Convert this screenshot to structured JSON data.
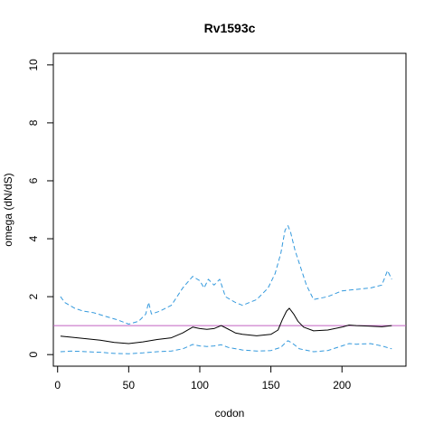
{
  "chart_data": {
    "type": "line",
    "title": "Rv1593c",
    "xlabel": "codon",
    "ylabel": "omega (dN/dS)",
    "xlim": [
      -3,
      245
    ],
    "ylim": [
      -0.4,
      10.4
    ],
    "xticks": [
      0,
      50,
      100,
      150,
      200
    ],
    "yticks": [
      0,
      2,
      4,
      6,
      8,
      10
    ],
    "grid": false,
    "legend": "none",
    "reference_line": {
      "y": 1,
      "color": "#c060c0"
    },
    "series": [
      {
        "style": "solid",
        "color": "#000000",
        "points": [
          [
            2,
            0.64
          ],
          [
            10,
            0.6
          ],
          [
            20,
            0.55
          ],
          [
            30,
            0.5
          ],
          [
            40,
            0.42
          ],
          [
            50,
            0.38
          ],
          [
            60,
            0.44
          ],
          [
            70,
            0.52
          ],
          [
            80,
            0.58
          ],
          [
            88,
            0.75
          ],
          [
            95,
            0.95
          ],
          [
            100,
            0.9
          ],
          [
            105,
            0.87
          ],
          [
            110,
            0.9
          ],
          [
            115,
            1.0
          ],
          [
            120,
            0.88
          ],
          [
            125,
            0.75
          ],
          [
            130,
            0.7
          ],
          [
            140,
            0.65
          ],
          [
            150,
            0.7
          ],
          [
            155,
            0.85
          ],
          [
            158,
            1.2
          ],
          [
            161,
            1.5
          ],
          [
            163,
            1.6
          ],
          [
            166,
            1.4
          ],
          [
            169,
            1.15
          ],
          [
            173,
            0.95
          ],
          [
            180,
            0.82
          ],
          [
            190,
            0.85
          ],
          [
            200,
            0.95
          ],
          [
            205,
            1.02
          ],
          [
            210,
            1.0
          ],
          [
            220,
            0.98
          ],
          [
            228,
            0.96
          ],
          [
            235,
            1.0
          ]
        ]
      },
      {
        "style": "dashed",
        "color": "#3399dd",
        "points": [
          [
            2,
            2.0
          ],
          [
            5,
            1.8
          ],
          [
            12,
            1.6
          ],
          [
            18,
            1.5
          ],
          [
            25,
            1.45
          ],
          [
            35,
            1.3
          ],
          [
            42,
            1.2
          ],
          [
            50,
            1.05
          ],
          [
            57,
            1.15
          ],
          [
            62,
            1.4
          ],
          [
            64,
            1.8
          ],
          [
            66,
            1.4
          ],
          [
            72,
            1.5
          ],
          [
            80,
            1.7
          ],
          [
            88,
            2.3
          ],
          [
            95,
            2.7
          ],
          [
            100,
            2.55
          ],
          [
            103,
            2.3
          ],
          [
            106,
            2.6
          ],
          [
            110,
            2.4
          ],
          [
            114,
            2.6
          ],
          [
            118,
            2.0
          ],
          [
            125,
            1.8
          ],
          [
            130,
            1.7
          ],
          [
            140,
            1.9
          ],
          [
            148,
            2.3
          ],
          [
            153,
            2.8
          ],
          [
            157,
            3.5
          ],
          [
            160,
            4.3
          ],
          [
            162,
            4.45
          ],
          [
            164,
            4.2
          ],
          [
            167,
            3.6
          ],
          [
            171,
            3.0
          ],
          [
            175,
            2.4
          ],
          [
            180,
            1.9
          ],
          [
            190,
            2.0
          ],
          [
            200,
            2.2
          ],
          [
            210,
            2.25
          ],
          [
            220,
            2.3
          ],
          [
            228,
            2.4
          ],
          [
            232,
            2.9
          ],
          [
            235,
            2.6
          ]
        ]
      },
      {
        "style": "dashed",
        "color": "#3399dd",
        "points": [
          [
            2,
            0.1
          ],
          [
            10,
            0.12
          ],
          [
            20,
            0.1
          ],
          [
            30,
            0.08
          ],
          [
            40,
            0.04
          ],
          [
            50,
            0.03
          ],
          [
            60,
            0.06
          ],
          [
            70,
            0.1
          ],
          [
            80,
            0.12
          ],
          [
            88,
            0.2
          ],
          [
            95,
            0.35
          ],
          [
            100,
            0.3
          ],
          [
            105,
            0.28
          ],
          [
            110,
            0.3
          ],
          [
            115,
            0.34
          ],
          [
            120,
            0.25
          ],
          [
            130,
            0.16
          ],
          [
            140,
            0.12
          ],
          [
            150,
            0.14
          ],
          [
            157,
            0.25
          ],
          [
            160,
            0.4
          ],
          [
            162,
            0.48
          ],
          [
            165,
            0.4
          ],
          [
            170,
            0.2
          ],
          [
            180,
            0.1
          ],
          [
            190,
            0.14
          ],
          [
            200,
            0.3
          ],
          [
            205,
            0.38
          ],
          [
            210,
            0.36
          ],
          [
            220,
            0.38
          ],
          [
            228,
            0.3
          ],
          [
            235,
            0.2
          ]
        ]
      }
    ]
  }
}
